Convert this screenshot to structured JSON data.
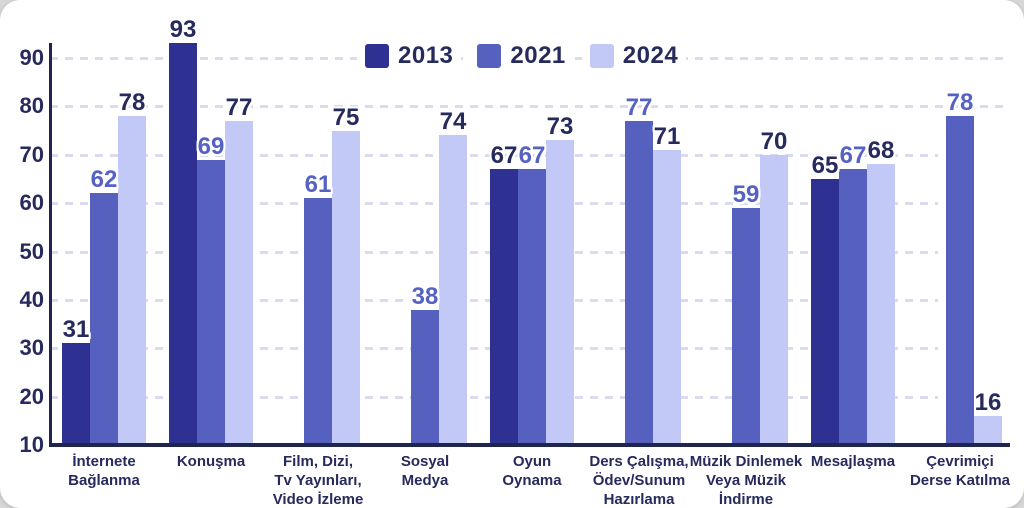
{
  "chart_data": {
    "type": "bar",
    "title": "",
    "xlabel": "",
    "ylabel": "",
    "legend_position": "top-center",
    "grid": "dashed-horizontal",
    "yticks": [
      90,
      80,
      70,
      60,
      50,
      40,
      30,
      20,
      10
    ],
    "ylim": [
      10,
      93
    ],
    "categories": [
      [
        "İnternete",
        "Bağlanma"
      ],
      [
        "Konuşma"
      ],
      [
        "Film, Dizi,",
        "Tv Yayınları,",
        "Video İzleme"
      ],
      [
        "Sosyal",
        "Medya"
      ],
      [
        "Oyun",
        "Oynama"
      ],
      [
        "Ders Çalışma,",
        "Ödev/Sunum",
        "Hazırlama"
      ],
      [
        "Müzik Dinlemek",
        "Veya Müzik",
        "İndirme"
      ],
      [
        "Mesajlaşma"
      ],
      [
        "Çevrimiçi",
        "Derse Katılma"
      ]
    ],
    "series": [
      {
        "name": "2013",
        "color": "#2e3192",
        "label_color": "#262a5c",
        "values": [
          31,
          93,
          null,
          null,
          67,
          null,
          null,
          65,
          null
        ]
      },
      {
        "name": "2021",
        "color": "#5560bf",
        "label_color": "#5661c4",
        "values": [
          62,
          69,
          61,
          38,
          67,
          77,
          59,
          67,
          78
        ]
      },
      {
        "name": "2024",
        "color": "#c3c9f7",
        "label_color": "#262a5c",
        "values": [
          78,
          77,
          75,
          74,
          73,
          71,
          70,
          68,
          16
        ]
      }
    ]
  },
  "colors": {
    "text_navy": "#262a5c",
    "axis": "#20254f",
    "gridline": "#dadbee",
    "card_background": "#ffffff",
    "page_background": "#d7d7d7"
  }
}
